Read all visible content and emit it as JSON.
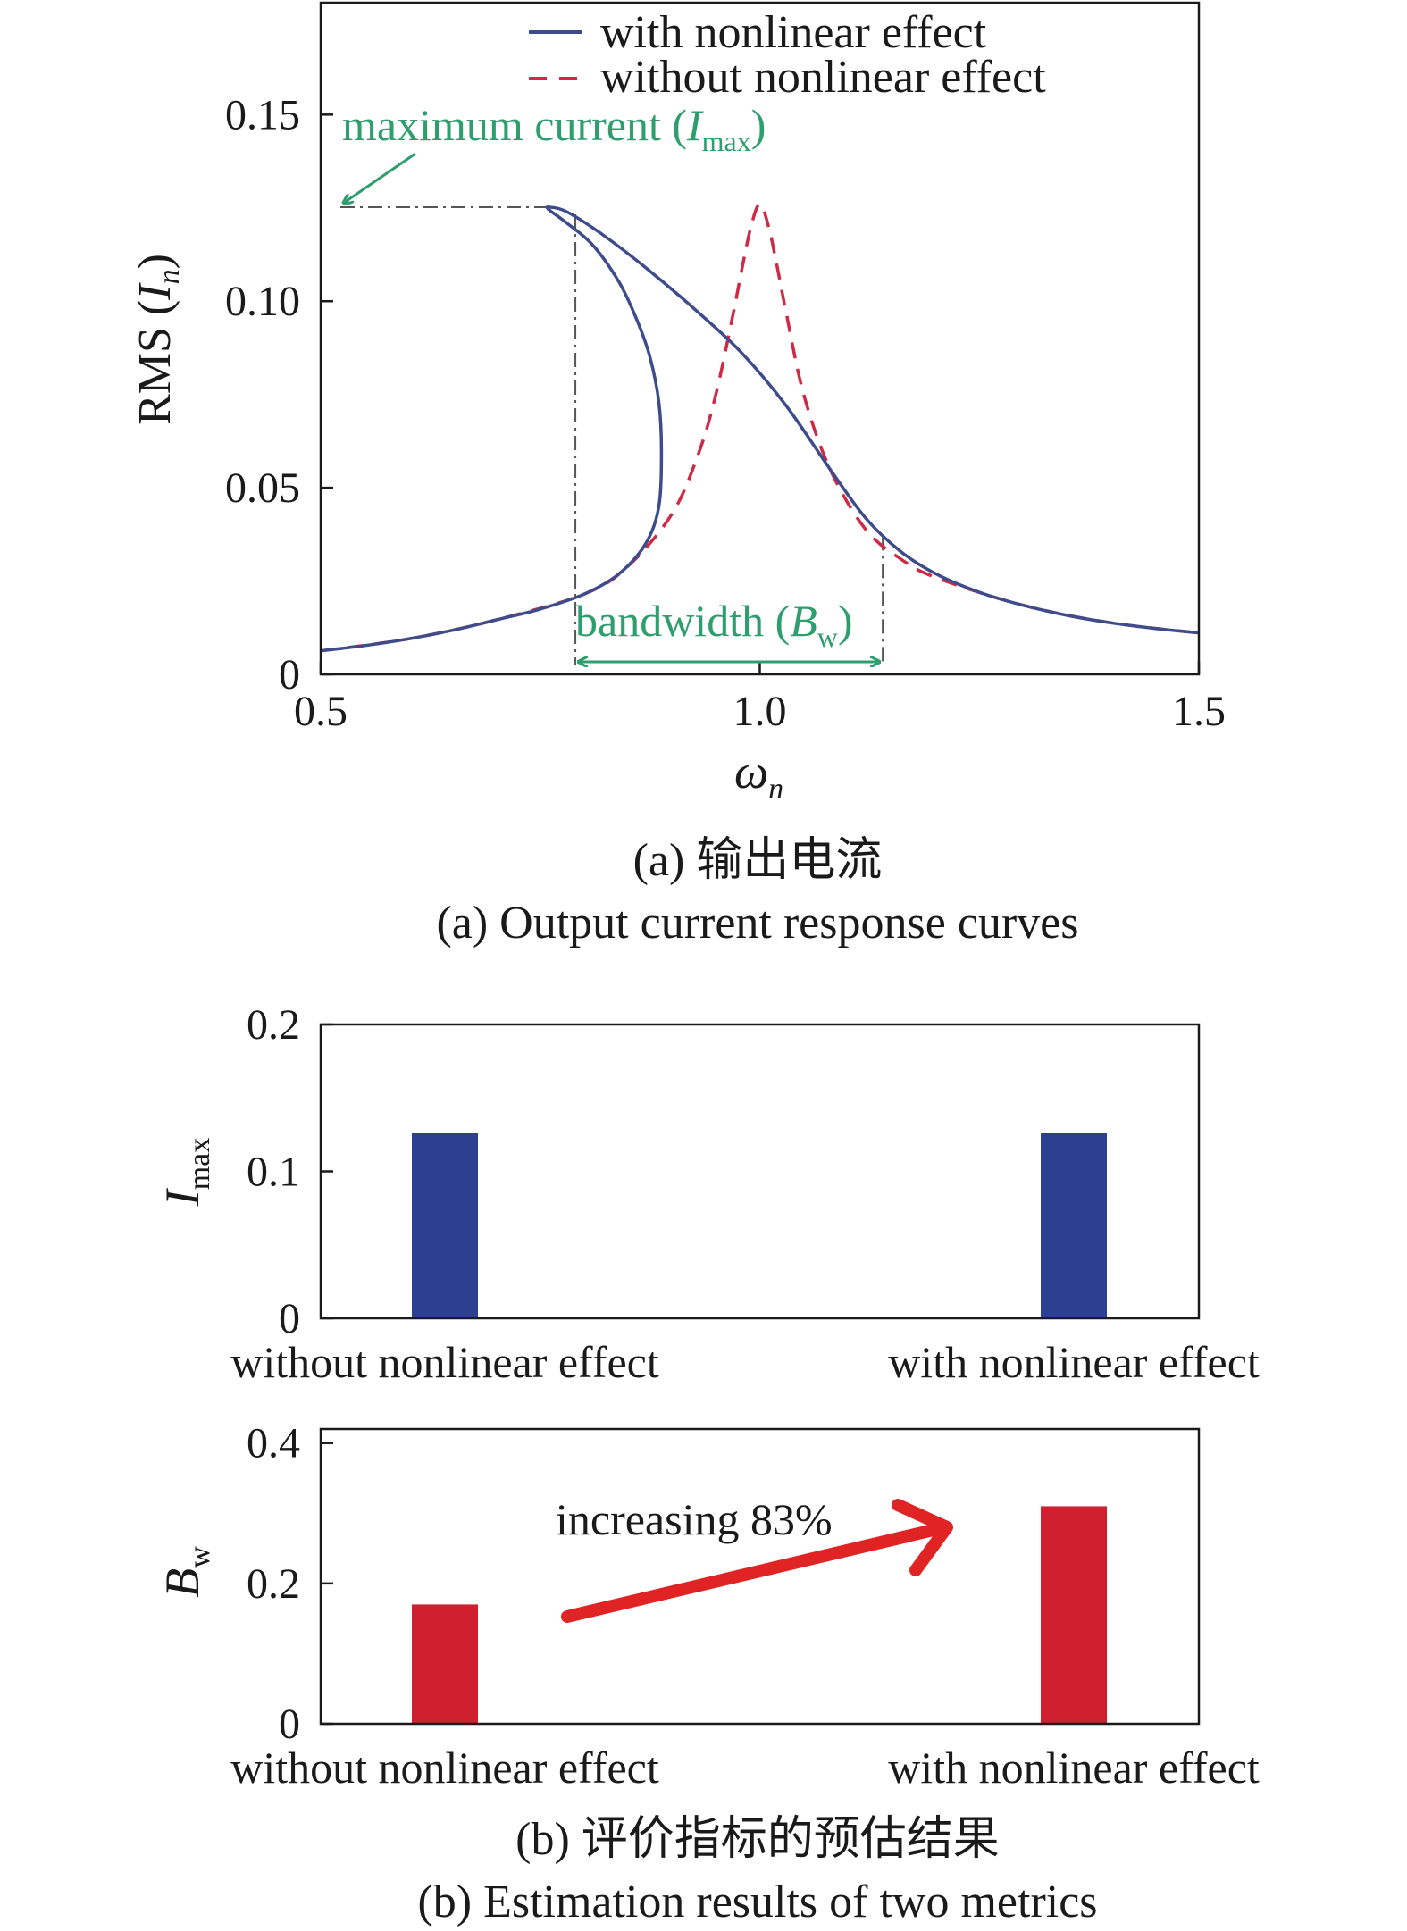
{
  "chart_data": [
    {
      "type": "line",
      "xlabel": "ω",
      "xlabel_sub": "n",
      "ylabel_main": "RMS (",
      "ylabel_var": "I",
      "ylabel_sub": "n",
      "ylabel_close": ")",
      "xlim": [
        0.5,
        1.5
      ],
      "ylim": [
        0,
        0.18
      ],
      "x_ticks": [
        {
          "value": 0.5,
          "label": "0.5"
        },
        {
          "value": 1.0,
          "label": "1.0"
        },
        {
          "value": 1.5,
          "label": "1.5"
        }
      ],
      "y_ticks": [
        {
          "value": 0,
          "label": "0"
        },
        {
          "value": 0.05,
          "label": "0.05"
        },
        {
          "value": 0.1,
          "label": "0.10"
        },
        {
          "value": 0.15,
          "label": "0.15"
        }
      ],
      "legend_position": "top-center",
      "series": [
        {
          "name": "with nonlinear effect",
          "color": "#3f4c8c",
          "style": "solid",
          "x": [
            0.5,
            0.55,
            0.6,
            0.65,
            0.7,
            0.75,
            0.8,
            0.84,
            0.87,
            0.885,
            0.888,
            0.885,
            0.875,
            0.86,
            0.84,
            0.81,
            0.78,
            0.76,
            0.76,
            0.78,
            0.82,
            0.87,
            0.93,
            0.98,
            1.03,
            1.08,
            1.12,
            1.16,
            1.2,
            1.25,
            1.3,
            1.35,
            1.4,
            1.45,
            1.5
          ],
          "y": [
            0.0063,
            0.0077,
            0.0095,
            0.0118,
            0.0146,
            0.0175,
            0.0215,
            0.027,
            0.035,
            0.045,
            0.06,
            0.073,
            0.085,
            0.095,
            0.105,
            0.115,
            0.121,
            0.1245,
            0.1252,
            0.124,
            0.118,
            0.109,
            0.097,
            0.086,
            0.072,
            0.055,
            0.042,
            0.033,
            0.027,
            0.022,
            0.0185,
            0.0158,
            0.0138,
            0.0123,
            0.0111
          ]
        },
        {
          "name": "without nonlinear effect",
          "color": "#cf2a45",
          "style": "dashed",
          "x": [
            0.5,
            0.6,
            0.7,
            0.8,
            0.85,
            0.9,
            0.93,
            0.95,
            0.97,
            0.98,
            0.99,
            1.0,
            1.01,
            1.02,
            1.03,
            1.05,
            1.08,
            1.12,
            1.16,
            1.2,
            1.3,
            1.4,
            1.5
          ],
          "y": [
            0.0063,
            0.0095,
            0.0146,
            0.0215,
            0.029,
            0.043,
            0.059,
            0.075,
            0.097,
            0.109,
            0.12,
            0.126,
            0.12,
            0.109,
            0.097,
            0.075,
            0.055,
            0.039,
            0.031,
            0.026,
            0.0185,
            0.0138,
            0.0111
          ]
        }
      ],
      "annotations": {
        "max_text": "maximum current (",
        "max_var": "I",
        "max_sub": "max",
        "max_close": ")",
        "max_value": 0.1252,
        "max_x": 0.76,
        "bw_text": "bandwidth (",
        "bw_var": "B",
        "bw_sub": "w",
        "bw_close": ")",
        "bw_range": [
          0.79,
          1.14
        ],
        "accent_color": "#2e9e6e"
      },
      "caption_cn": "(a) 输出电流",
      "caption_en": "(a) Output current response curves"
    },
    {
      "type": "bar",
      "ylabel_var": "I",
      "ylabel_sub": "max",
      "ylim": [
        0,
        0.2
      ],
      "y_ticks": [
        {
          "value": 0,
          "label": "0"
        },
        {
          "value": 0.1,
          "label": "0.1"
        },
        {
          "value": 0.2,
          "label": "0.2"
        }
      ],
      "categories": [
        "without nonlinear effect",
        "with nonlinear effect"
      ],
      "values": [
        0.126,
        0.126
      ],
      "color": "#2b4090"
    },
    {
      "type": "bar",
      "ylabel_var": "B",
      "ylabel_sub": "w",
      "ylim": [
        0,
        0.42
      ],
      "y_ticks": [
        {
          "value": 0,
          "label": "0"
        },
        {
          "value": 0.2,
          "label": "0.2"
        },
        {
          "value": 0.4,
          "label": "0.4"
        }
      ],
      "categories": [
        "without nonlinear effect",
        "with nonlinear effect"
      ],
      "values": [
        0.17,
        0.31
      ],
      "color": "#d0202f",
      "annotation": "increasing 83%",
      "arrow_color": "#e02424",
      "caption_cn": "(b) 评价指标的预估结果",
      "caption_en": "(b) Estimation results of two metrics"
    }
  ]
}
